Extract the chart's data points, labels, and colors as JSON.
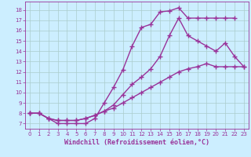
{
  "line1_x": [
    0,
    1,
    2,
    3,
    4,
    5,
    6,
    7,
    8,
    9,
    10,
    11,
    12,
    13,
    14,
    15,
    16,
    17,
    18,
    19,
    20,
    21,
    22
  ],
  "line1_y": [
    8,
    8,
    7.5,
    7,
    7,
    7,
    7,
    7.5,
    9,
    10.5,
    12.2,
    14.5,
    16.3,
    16.6,
    17.8,
    17.9,
    18.2,
    17.2,
    17.2,
    17.2,
    17.2,
    17.2,
    17.2
  ],
  "line2_x": [
    0,
    1,
    2,
    3,
    4,
    5,
    6,
    7,
    8,
    9,
    10,
    11,
    12,
    13,
    14,
    15,
    16,
    17,
    18,
    19,
    20,
    21,
    22,
    23
  ],
  "line2_y": [
    8,
    8,
    7.5,
    7.3,
    7.3,
    7.3,
    7.5,
    7.8,
    8.2,
    8.8,
    9.8,
    10.8,
    11.5,
    12.3,
    13.5,
    15.5,
    17.2,
    15.5,
    15.0,
    14.5,
    14.0,
    14.8,
    13.5,
    12.5
  ],
  "line3_x": [
    0,
    1,
    2,
    3,
    4,
    5,
    6,
    7,
    8,
    9,
    10,
    11,
    12,
    13,
    14,
    15,
    16,
    17,
    18,
    19,
    20,
    21,
    22,
    23
  ],
  "line3_y": [
    8,
    8,
    7.5,
    7.3,
    7.3,
    7.3,
    7.5,
    7.8,
    8.2,
    8.5,
    9.0,
    9.5,
    10.0,
    10.5,
    11.0,
    11.5,
    12.0,
    12.3,
    12.5,
    12.8,
    12.5,
    12.5,
    12.5,
    12.5
  ],
  "color": "#993399",
  "bg_color": "#cceeff",
  "grid_color": "#aacccc",
  "xlabel": "Windchill (Refroidissement éolien,°C)",
  "ylim": [
    6.5,
    18.8
  ],
  "xlim": [
    -0.5,
    23.5
  ],
  "xticks": [
    0,
    1,
    2,
    3,
    4,
    5,
    6,
    7,
    8,
    9,
    10,
    11,
    12,
    13,
    14,
    15,
    16,
    17,
    18,
    19,
    20,
    21,
    22,
    23
  ],
  "yticks": [
    7,
    8,
    9,
    10,
    11,
    12,
    13,
    14,
    15,
    16,
    17,
    18
  ],
  "marker": "+",
  "marker_size": 4,
  "line_width": 1.0,
  "xlabel_fontsize": 6.0,
  "tick_fontsize": 5.0,
  "tick_color": "#993399"
}
